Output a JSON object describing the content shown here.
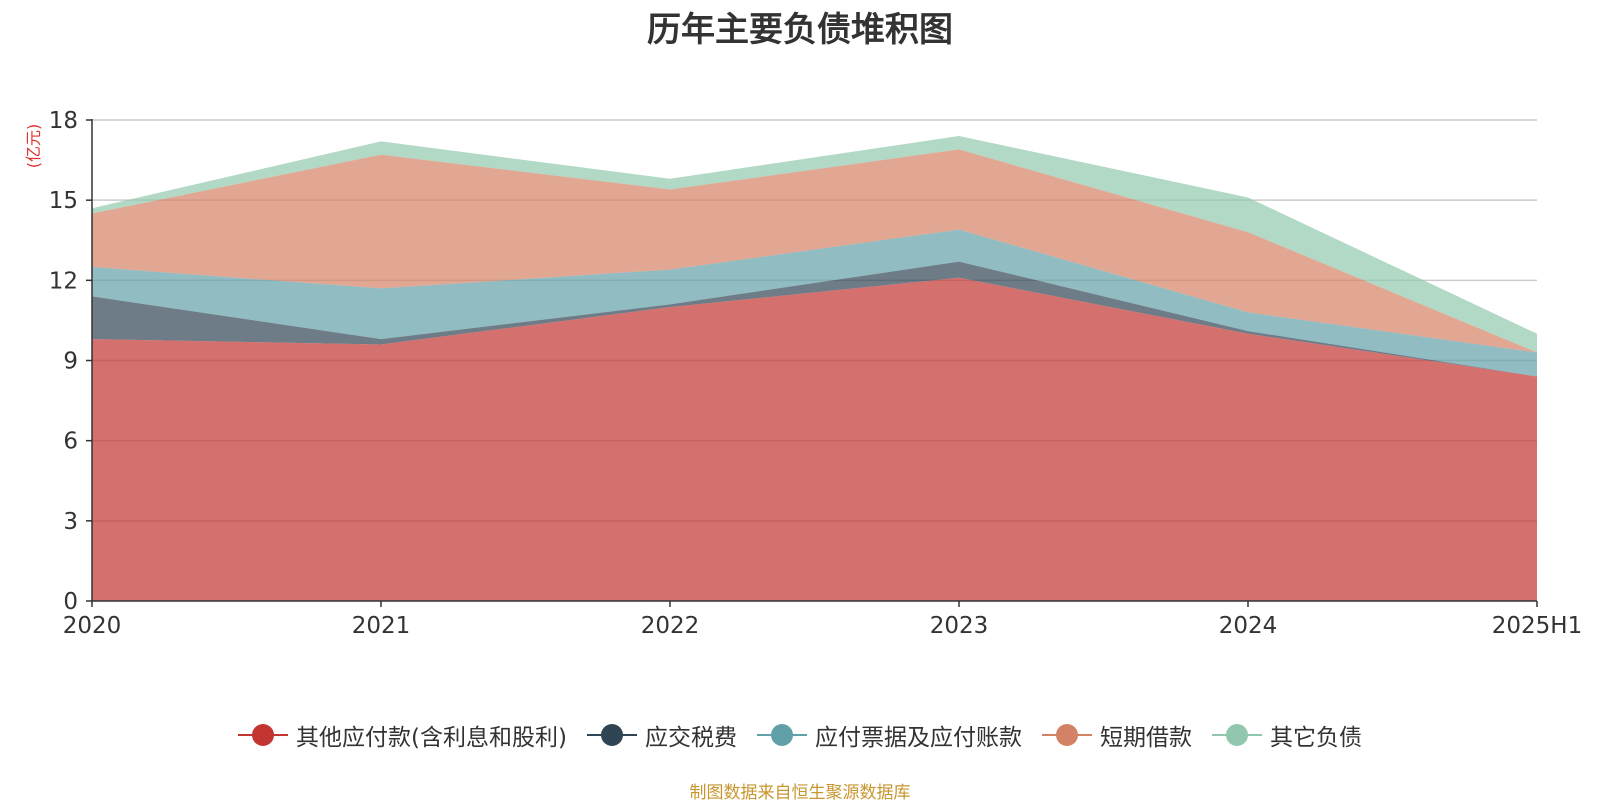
{
  "chart_data": {
    "type": "area",
    "title": "历年主要负债堆积图",
    "yunit": "(亿元)",
    "source": "制图数据来自恒生聚源数据库",
    "categories": [
      "2020",
      "2021",
      "2022",
      "2023",
      "2024",
      "2025H1"
    ],
    "ylim": [
      0,
      18
    ],
    "yticks": [
      0,
      3,
      6,
      9,
      12,
      15,
      18
    ],
    "grid": true,
    "stacked": true,
    "legend_position": "bottom",
    "series": [
      {
        "name": "其他应付款(含利息和股利)",
        "color": "#c23531",
        "values": [
          9.8,
          9.6,
          11.0,
          12.1,
          10.0,
          8.4
        ]
      },
      {
        "name": "应交税费",
        "color": "#2f4554",
        "values": [
          1.6,
          0.2,
          0.1,
          0.6,
          0.1,
          0.0
        ]
      },
      {
        "name": "应付票据及应付账款",
        "color": "#61a0a8",
        "values": [
          1.1,
          1.9,
          1.3,
          1.2,
          0.7,
          0.9
        ]
      },
      {
        "name": "短期借款",
        "color": "#d48265",
        "values": [
          2.0,
          5.0,
          3.0,
          3.0,
          3.0,
          0.0
        ]
      },
      {
        "name": "其它负债",
        "color": "#91c7ae",
        "values": [
          0.2,
          0.5,
          0.4,
          0.5,
          1.3,
          0.7
        ]
      }
    ]
  }
}
